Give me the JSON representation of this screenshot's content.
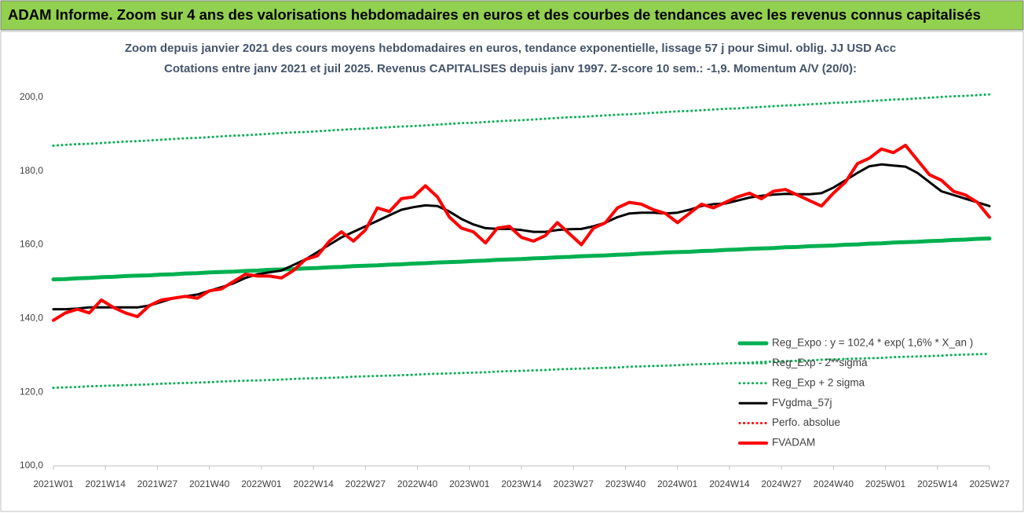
{
  "chart_data": {
    "type": "line",
    "title": "ADAM Informe. Zoom sur 4 ans des valorisations hebdomadaires en euros et des courbes de tendances avec les revenus connus capitalisés",
    "subtitle": [
      "Zoom depuis janvier 2021 des cours moyens hebdomadaires en euros, tendance exponentielle, lissage 57 j pour Simul. oblig. JJ USD Acc",
      "Cotations entre janv 2021 et juil 2025. Revenus CAPITALISES depuis janv 1997. Z-score 10 sem.: -1,9. Momentum A/V (20/0):"
    ],
    "x": [
      0,
      3,
      6,
      9,
      12,
      15,
      18,
      21,
      24,
      27,
      30,
      33,
      36,
      39,
      42,
      45,
      48,
      51,
      54,
      57,
      60,
      63,
      66,
      69,
      72,
      75,
      78,
      81,
      84,
      87,
      90,
      93,
      96,
      99,
      102,
      105,
      108,
      111,
      114,
      117,
      120,
      123,
      126,
      129,
      132,
      135,
      138,
      141,
      144,
      147,
      150,
      153,
      156,
      159,
      162,
      165,
      168,
      171,
      174,
      177,
      180,
      183,
      186,
      189,
      192,
      195,
      198,
      201,
      204,
      207,
      210,
      213,
      216,
      219,
      222,
      225,
      228,
      231,
      234
    ],
    "xlim": [
      0,
      234
    ],
    "xticks": [
      {
        "value": 0,
        "label": "2021W01"
      },
      {
        "value": 13,
        "label": "2021W14"
      },
      {
        "value": 26,
        "label": "2021W27"
      },
      {
        "value": 39,
        "label": "2021W40"
      },
      {
        "value": 52,
        "label": "2022W01"
      },
      {
        "value": 65,
        "label": "2022W14"
      },
      {
        "value": 78,
        "label": "2022W27"
      },
      {
        "value": 91,
        "label": "2022W40"
      },
      {
        "value": 104,
        "label": "2023W01"
      },
      {
        "value": 117,
        "label": "2023W14"
      },
      {
        "value": 130,
        "label": "2023W27"
      },
      {
        "value": 143,
        "label": "2023W40"
      },
      {
        "value": 156,
        "label": "2024W01"
      },
      {
        "value": 169,
        "label": "2024W14"
      },
      {
        "value": 182,
        "label": "2024W27"
      },
      {
        "value": 195,
        "label": "2024W40"
      },
      {
        "value": 208,
        "label": "2025W01"
      },
      {
        "value": 221,
        "label": "2025W14"
      },
      {
        "value": 234,
        "label": "2025W27"
      }
    ],
    "ylim": [
      100,
      210
    ],
    "yticks": [
      {
        "value": 100,
        "label": "100,0"
      },
      {
        "value": 120,
        "label": "120,0"
      },
      {
        "value": 140,
        "label": "140,0"
      },
      {
        "value": 160,
        "label": "160,0"
      },
      {
        "value": 180,
        "label": "180,0"
      },
      {
        "value": 200,
        "label": "200,0"
      }
    ],
    "legend": "lower right",
    "series": [
      {
        "name": "Reg_Expo : y = 102,4 * exp( 1,6% *  X_an )",
        "color": "#00b050",
        "dash": "solid",
        "line_width": 5,
        "values": [
          150.6,
          150.7,
          150.9,
          151.0,
          151.2,
          151.3,
          151.5,
          151.6,
          151.7,
          151.9,
          152.0,
          152.2,
          152.3,
          152.5,
          152.6,
          152.7,
          152.9,
          153.0,
          153.2,
          153.3,
          153.4,
          153.6,
          153.7,
          153.9,
          154.0,
          154.2,
          154.3,
          154.4,
          154.6,
          154.7,
          154.9,
          155.0,
          155.2,
          155.3,
          155.4,
          155.6,
          155.7,
          155.9,
          156.0,
          156.1,
          156.3,
          156.4,
          156.6,
          156.7,
          156.9,
          157.0,
          157.1,
          157.3,
          157.4,
          157.6,
          157.7,
          157.9,
          158.0,
          158.1,
          158.3,
          158.4,
          158.6,
          158.7,
          158.9,
          159.0,
          159.1,
          159.3,
          159.4,
          159.6,
          159.7,
          159.8,
          160.0,
          160.1,
          160.3,
          160.4,
          160.6,
          160.7,
          160.8,
          161.0,
          161.1,
          161.3,
          161.4,
          161.6,
          161.7
        ]
      },
      {
        "name": "Reg_Exp - 2**sigma",
        "color": "#00b050",
        "dash": "dotted",
        "line_width": 3,
        "values": [
          121.2,
          121.3,
          121.4,
          121.6,
          121.7,
          121.8,
          121.9,
          122.0,
          122.1,
          122.3,
          122.4,
          122.5,
          122.6,
          122.7,
          122.9,
          123.0,
          123.1,
          123.2,
          123.3,
          123.4,
          123.6,
          123.7,
          123.8,
          123.9,
          124.0,
          124.2,
          124.3,
          124.4,
          124.5,
          124.6,
          124.7,
          124.9,
          125.0,
          125.1,
          125.2,
          125.3,
          125.4,
          125.6,
          125.7,
          125.8,
          125.9,
          126.0,
          126.2,
          126.3,
          126.4,
          126.5,
          126.6,
          126.7,
          126.9,
          127.0,
          127.1,
          127.2,
          127.3,
          127.5,
          127.6,
          127.7,
          127.8,
          127.9,
          128.0,
          128.2,
          128.3,
          128.4,
          128.5,
          128.6,
          128.8,
          128.9,
          129.0,
          129.1,
          129.2,
          129.3,
          129.5,
          129.6,
          129.7,
          129.8,
          129.9,
          130.1,
          130.2,
          130.3,
          130.4
        ]
      },
      {
        "name": "Reg_Exp + 2 sigma",
        "color": "#00b050",
        "dash": "dotted",
        "line_width": 3,
        "values": [
          186.9,
          187.1,
          187.3,
          187.4,
          187.6,
          187.8,
          188.0,
          188.1,
          188.3,
          188.5,
          188.7,
          188.9,
          189.0,
          189.2,
          189.4,
          189.6,
          189.7,
          189.9,
          190.1,
          190.3,
          190.5,
          190.6,
          190.8,
          191.0,
          191.2,
          191.4,
          191.5,
          191.7,
          191.9,
          192.1,
          192.2,
          192.4,
          192.6,
          192.8,
          193.0,
          193.1,
          193.3,
          193.5,
          193.7,
          193.8,
          194.0,
          194.2,
          194.4,
          194.6,
          194.7,
          194.9,
          195.1,
          195.3,
          195.4,
          195.6,
          195.8,
          196.0,
          196.2,
          196.3,
          196.5,
          196.7,
          196.9,
          197.0,
          197.2,
          197.4,
          197.6,
          197.8,
          197.9,
          198.1,
          198.3,
          198.5,
          198.6,
          198.8,
          199.0,
          199.2,
          199.4,
          199.5,
          199.7,
          199.9,
          200.1,
          200.3,
          200.4,
          200.6,
          200.8
        ]
      },
      {
        "name": "FVgdma_57j",
        "color": "#000000",
        "dash": "solid",
        "line_width": 3,
        "values": [
          142.5,
          142.5,
          142.7,
          143,
          143,
          143,
          143,
          143,
          143.5,
          144.5,
          145.5,
          146,
          146.5,
          147.5,
          148.5,
          149.5,
          151,
          152,
          152.5,
          153,
          154.5,
          156,
          158,
          160,
          162,
          163.5,
          165,
          166.5,
          168,
          169.5,
          170.2,
          170.7,
          170.5,
          169,
          167,
          165.5,
          164.5,
          164.3,
          164.3,
          164,
          163.5,
          163.5,
          164,
          164.2,
          164.3,
          165,
          166,
          167.5,
          168.5,
          168.7,
          168.7,
          168.5,
          168.7,
          169.5,
          170.5,
          171,
          171.2,
          172,
          172.8,
          173.3,
          173.6,
          173.8,
          173.7,
          173.7,
          174,
          175.5,
          177.5,
          179.5,
          181.3,
          181.8,
          181.5,
          181.2,
          179.5,
          177,
          174.5,
          173.5,
          172.5,
          171.5,
          170.5
        ]
      },
      {
        "name": "Perfo. absolue",
        "color": "#ff0000",
        "dash": "dotted",
        "line_width": 3,
        "values": [
          null,
          null,
          null,
          null,
          null,
          null,
          null,
          null,
          null,
          null,
          null,
          null,
          null,
          null,
          null,
          null,
          null,
          null,
          null,
          null,
          null,
          null,
          null,
          null,
          null,
          null,
          null,
          null,
          null,
          null,
          null,
          null,
          null,
          null,
          null,
          null,
          null,
          null,
          null,
          null,
          null,
          null,
          null,
          null,
          null,
          null,
          null,
          null,
          null,
          null,
          null,
          null,
          null,
          null,
          null,
          null,
          null,
          null,
          null,
          null,
          null,
          null,
          null,
          null,
          null,
          null,
          null,
          null,
          null,
          null,
          null,
          null,
          null,
          null,
          null,
          null,
          null,
          null,
          null
        ]
      },
      {
        "name": "FVADAM",
        "color": "#ff0000",
        "dash": "solid",
        "line_width": 4,
        "values": [
          139.5,
          141.5,
          142.5,
          141.5,
          145,
          143,
          141.5,
          140.5,
          143.5,
          145,
          145.5,
          146,
          145.5,
          147.5,
          148,
          150,
          152,
          151.5,
          151.5,
          151,
          153,
          156,
          157,
          161,
          163.5,
          161,
          164,
          170,
          169,
          172.5,
          173,
          176,
          173,
          167.5,
          164.5,
          163.5,
          160.5,
          164.5,
          165,
          162,
          161,
          162.5,
          166,
          163,
          160,
          164.5,
          166,
          170,
          171.5,
          171,
          169.5,
          168.5,
          166,
          168.5,
          171,
          170,
          171.5,
          173,
          174,
          172.5,
          174.5,
          175,
          173.5,
          172,
          170.5,
          174,
          177,
          182,
          183.5,
          186,
          185,
          187,
          183,
          179,
          177.5,
          174.5,
          173.5,
          171.5,
          167.5
        ]
      }
    ]
  }
}
